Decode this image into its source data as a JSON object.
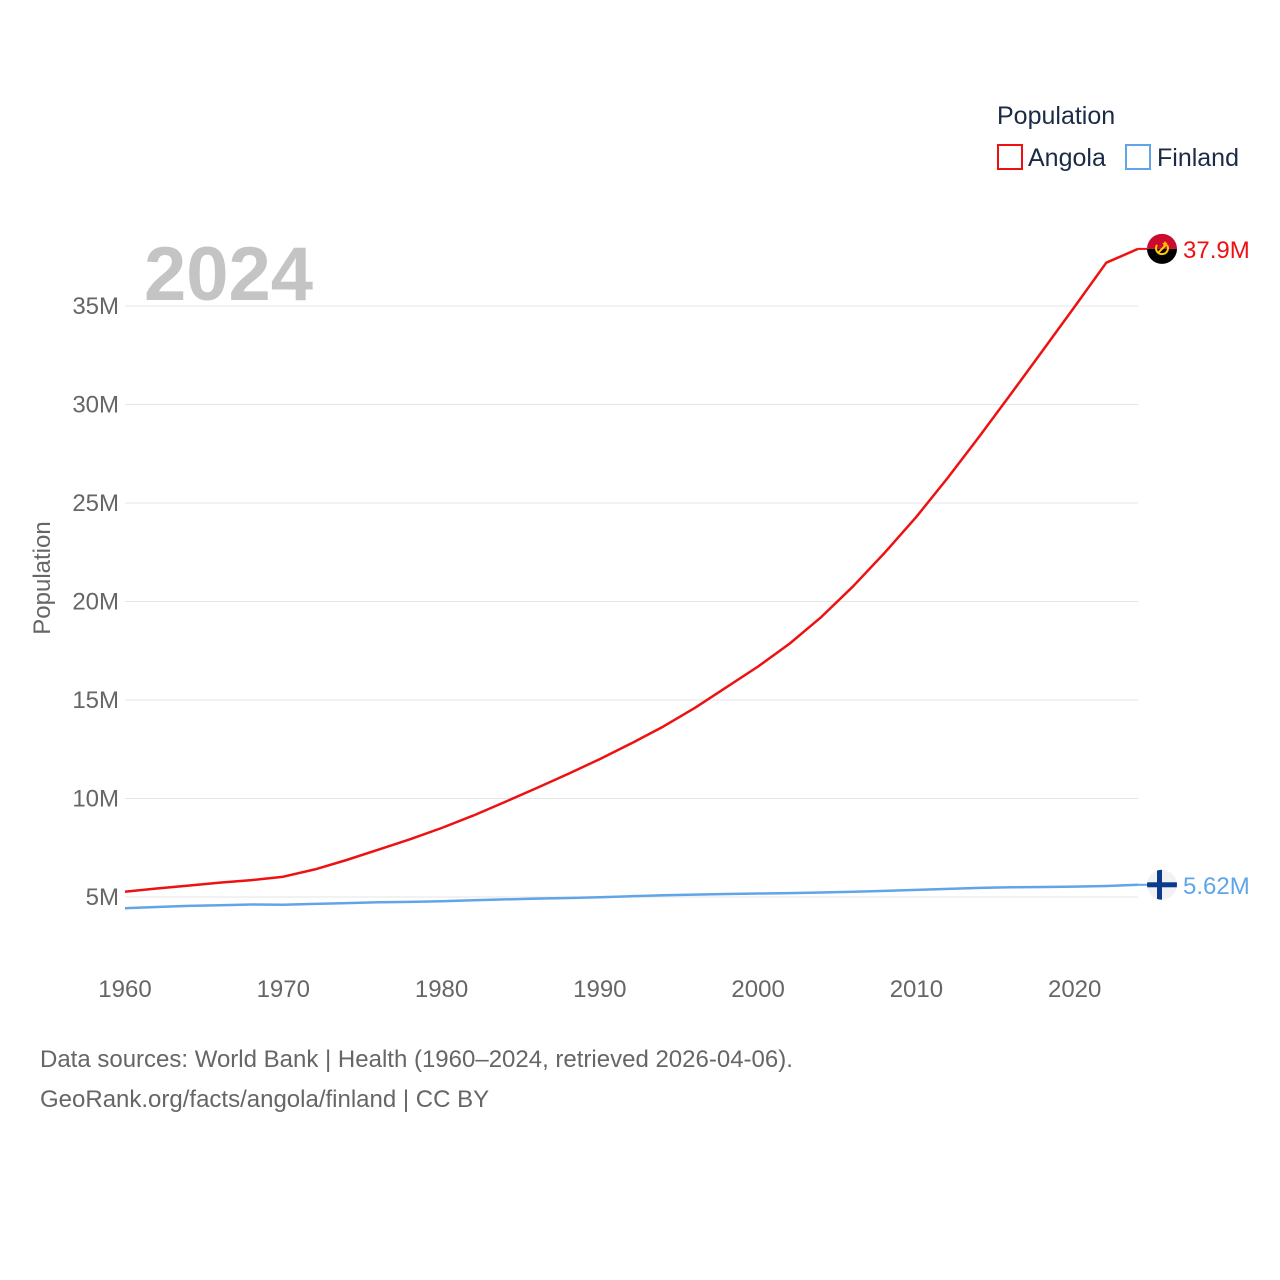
{
  "chart_data": {
    "type": "line",
    "title": "Population",
    "year_label": "2024",
    "ylabel": "Population",
    "xlabel": "",
    "xlim": [
      1960,
      2024
    ],
    "ylim": [
      0,
      38000000
    ],
    "x_ticks": [
      1960,
      1970,
      1980,
      1990,
      2000,
      2010,
      2020
    ],
    "x_tick_labels": [
      "1960",
      "1970",
      "1980",
      "1990",
      "2000",
      "2010",
      "2020"
    ],
    "y_ticks": [
      5000000,
      10000000,
      15000000,
      20000000,
      25000000,
      30000000,
      35000000
    ],
    "y_tick_labels": [
      "5M",
      "10M",
      "15M",
      "20M",
      "25M",
      "30M",
      "35M"
    ],
    "grid": true,
    "legend": {
      "title": "Population",
      "position": "top-right"
    },
    "series": [
      {
        "name": "Angola",
        "color": "#ee1111",
        "flag_icon": "angola-flag-icon",
        "end_label": "37.9M",
        "x": [
          1960,
          1962,
          1964,
          1966,
          1968,
          1970,
          1972,
          1974,
          1976,
          1978,
          1980,
          1982,
          1984,
          1986,
          1988,
          1990,
          1992,
          1994,
          1996,
          1998,
          2000,
          2002,
          2004,
          2006,
          2008,
          2010,
          2012,
          2014,
          2016,
          2018,
          2020,
          2022,
          2024
        ],
        "values": [
          5270000,
          5430000,
          5580000,
          5730000,
          5860000,
          6030000,
          6400000,
          6880000,
          7400000,
          7930000,
          8500000,
          9130000,
          9820000,
          10530000,
          11250000,
          12000000,
          12800000,
          13650000,
          14600000,
          15650000,
          16700000,
          17870000,
          19220000,
          20770000,
          22480000,
          24300000,
          26300000,
          28400000,
          30570000,
          32760000,
          34970000,
          37200000,
          37900000
        ]
      },
      {
        "name": "Finland",
        "color": "#60a5e8",
        "flag_icon": "finland-flag-icon",
        "end_label": "5.62M",
        "x": [
          1960,
          1962,
          1964,
          1966,
          1968,
          1970,
          1972,
          1974,
          1976,
          1978,
          1980,
          1982,
          1984,
          1986,
          1988,
          1990,
          1992,
          1994,
          1996,
          1998,
          2000,
          2002,
          2004,
          2006,
          2008,
          2010,
          2012,
          2014,
          2016,
          2018,
          2020,
          2022,
          2024
        ],
        "values": [
          4430000,
          4490000,
          4550000,
          4580000,
          4620000,
          4610000,
          4650000,
          4690000,
          4730000,
          4750000,
          4780000,
          4830000,
          4880000,
          4920000,
          4950000,
          4990000,
          5040000,
          5090000,
          5120000,
          5150000,
          5180000,
          5200000,
          5230000,
          5270000,
          5310000,
          5360000,
          5410000,
          5460000,
          5490000,
          5510000,
          5530000,
          5560000,
          5620000
        ]
      }
    ]
  },
  "footer": {
    "sources": "Data sources: World Bank | Health (1960–2024, retrieved 2026-04-06).",
    "attribution": "GeoRank.org/facts/angola/finland | CC BY"
  }
}
